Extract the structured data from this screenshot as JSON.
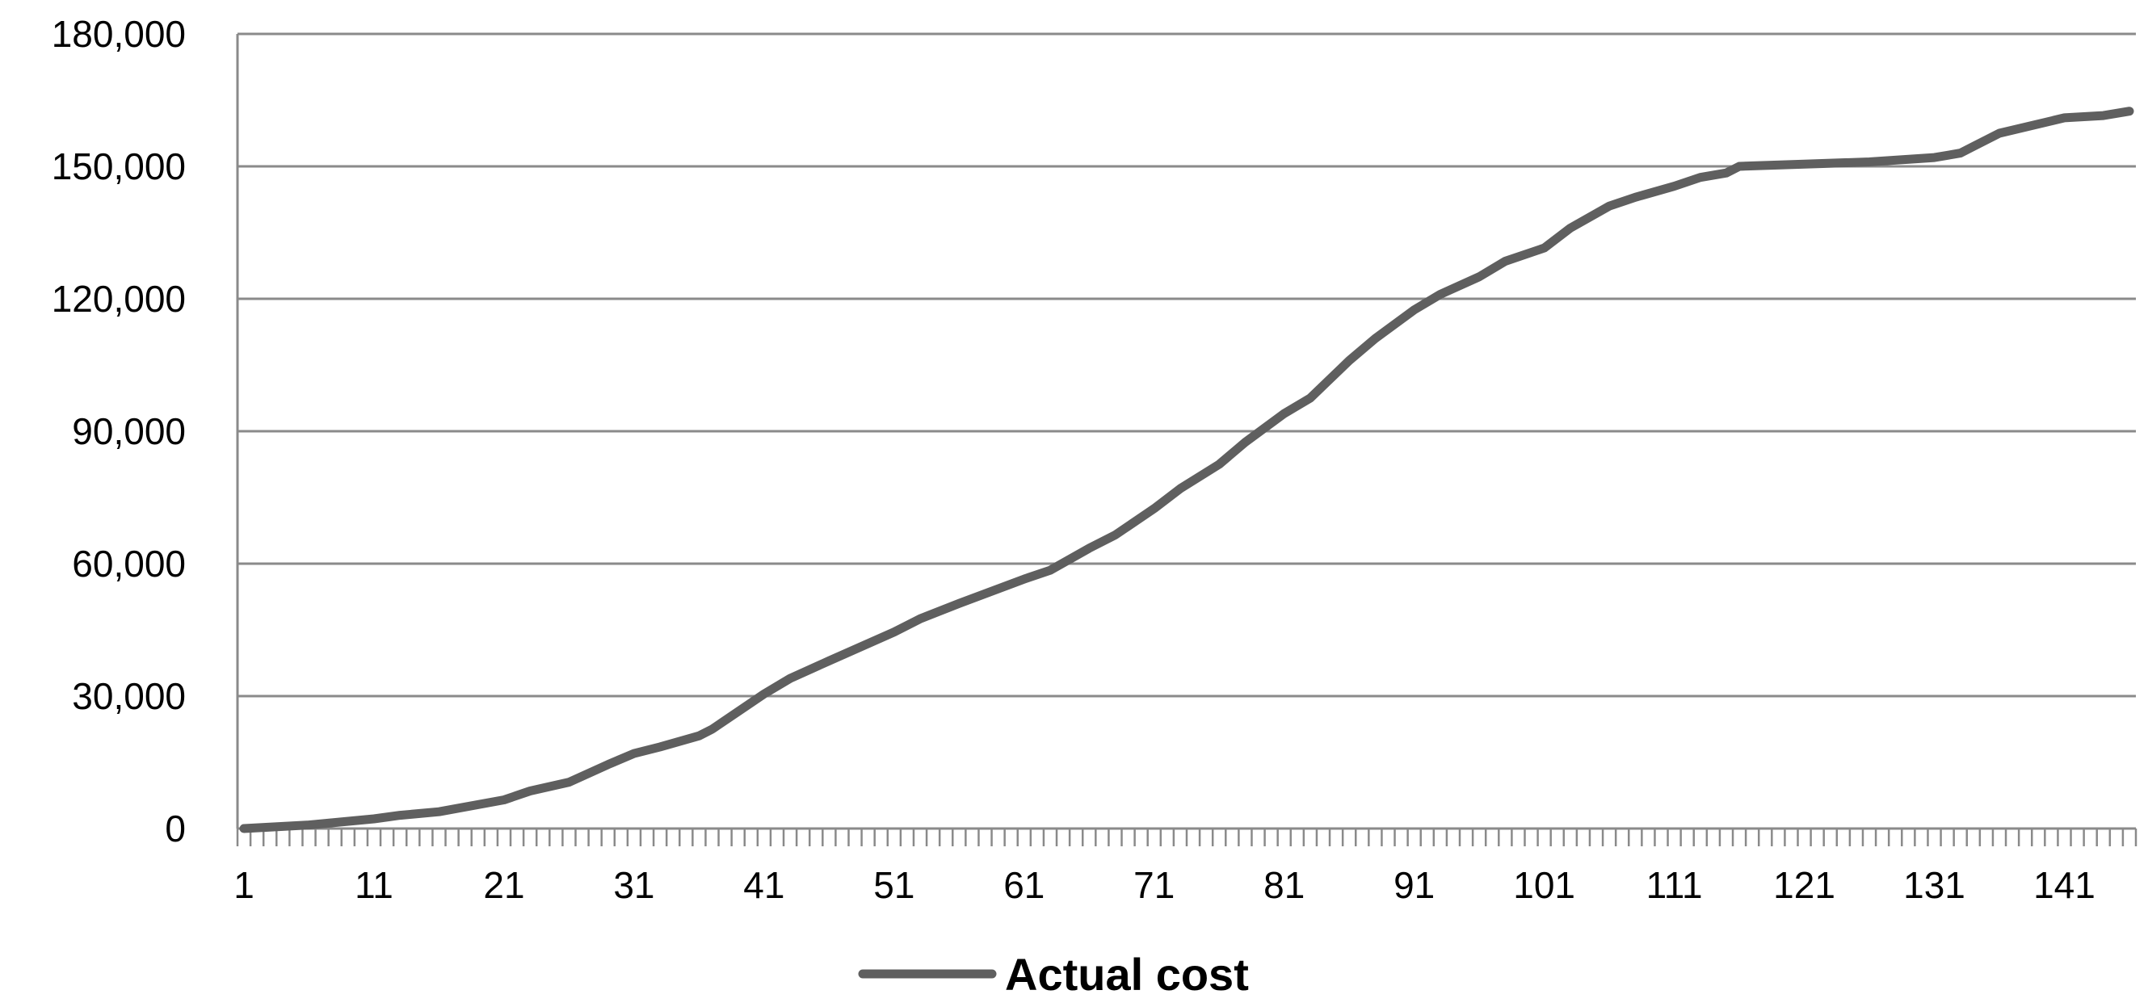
{
  "chart_data": {
    "type": "line",
    "title": "",
    "xlabel": "",
    "ylabel": "",
    "x_range": [
      1,
      146
    ],
    "ylim": [
      0,
      180000
    ],
    "y_ticks": [
      0,
      30000,
      60000,
      90000,
      120000,
      150000,
      180000
    ],
    "y_tick_labels": [
      "0",
      "30,000",
      "60,000",
      "90,000",
      "120,000",
      "150,000",
      "180,000"
    ],
    "x_ticks": [
      1,
      11,
      21,
      31,
      41,
      51,
      61,
      71,
      81,
      91,
      101,
      111,
      121,
      131,
      141
    ],
    "x_tick_labels": [
      "1",
      "11",
      "21",
      "31",
      "41",
      "51",
      "61",
      "71",
      "81",
      "91",
      "101",
      "111",
      "121",
      "131",
      "141"
    ],
    "grid": "horizontal",
    "legend_position": "bottom-center",
    "line_color": "#5f5f5f",
    "grid_color": "#8a8a8a",
    "series": [
      {
        "name": "Actual cost",
        "points": [
          [
            1,
            0
          ],
          [
            6,
            800
          ],
          [
            11,
            2200
          ],
          [
            13,
            3000
          ],
          [
            16,
            3800
          ],
          [
            21,
            6500
          ],
          [
            23,
            8500
          ],
          [
            26,
            10500
          ],
          [
            29,
            14500
          ],
          [
            31,
            17000
          ],
          [
            33,
            18500
          ],
          [
            36,
            21000
          ],
          [
            37,
            22500
          ],
          [
            41,
            30500
          ],
          [
            43,
            34000
          ],
          [
            46,
            38000
          ],
          [
            51,
            44500
          ],
          [
            53,
            47500
          ],
          [
            56,
            51000
          ],
          [
            61,
            56500
          ],
          [
            63,
            58500
          ],
          [
            66,
            63500
          ],
          [
            68,
            66500
          ],
          [
            71,
            72500
          ],
          [
            73,
            77000
          ],
          [
            76,
            82500
          ],
          [
            78,
            87500
          ],
          [
            81,
            94000
          ],
          [
            83,
            97500
          ],
          [
            86,
            106000
          ],
          [
            88,
            111000
          ],
          [
            91,
            117500
          ],
          [
            93,
            121000
          ],
          [
            96,
            125000
          ],
          [
            98,
            128500
          ],
          [
            101,
            131500
          ],
          [
            103,
            136000
          ],
          [
            106,
            141000
          ],
          [
            108,
            143000
          ],
          [
            111,
            145500
          ],
          [
            113,
            147500
          ],
          [
            115,
            148500
          ],
          [
            116,
            150000
          ],
          [
            121,
            150500
          ],
          [
            126,
            151000
          ],
          [
            131,
            152000
          ],
          [
            133,
            153000
          ],
          [
            134,
            154500
          ],
          [
            136,
            157500
          ],
          [
            141,
            161000
          ],
          [
            144,
            161500
          ],
          [
            146,
            162500
          ]
        ]
      }
    ]
  }
}
